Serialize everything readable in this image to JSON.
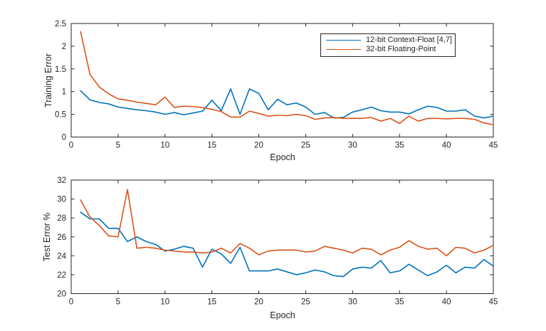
{
  "figure": {
    "background": "#ffffff",
    "axis_color": "#262626",
    "text_color": "#262626"
  },
  "colors": {
    "series1": "#0072BD",
    "series2": "#D95319"
  },
  "legend": {
    "position": "top-plot-north",
    "entries": [
      {
        "label": "12-bit Context-Float [4,7]",
        "color": "#0072BD"
      },
      {
        "label": "32-bit Floating-Point",
        "color": "#D95319"
      }
    ]
  },
  "chart_data": [
    {
      "type": "line",
      "title": "",
      "xlabel": "Epoch",
      "ylabel": "Training Error",
      "xlim": [
        0,
        45
      ],
      "ylim": [
        0,
        2.5
      ],
      "xticks": [
        0,
        5,
        10,
        15,
        20,
        25,
        30,
        35,
        40,
        45
      ],
      "yticks": [
        0,
        0.5,
        1,
        1.5,
        2,
        2.5
      ],
      "grid": false,
      "legend_position": "north",
      "x": [
        1,
        2,
        3,
        4,
        5,
        6,
        7,
        8,
        9,
        10,
        11,
        12,
        13,
        14,
        15,
        16,
        17,
        18,
        19,
        20,
        21,
        22,
        23,
        24,
        25,
        26,
        27,
        28,
        29,
        30,
        31,
        32,
        33,
        34,
        35,
        36,
        37,
        38,
        39,
        40,
        41,
        42,
        43,
        44,
        45
      ],
      "series": [
        {
          "name": "12-bit Context-Float [4,7]",
          "color": "#0072BD",
          "values": [
            1.02,
            0.82,
            0.76,
            0.73,
            0.66,
            0.63,
            0.6,
            0.58,
            0.55,
            0.5,
            0.54,
            0.49,
            0.53,
            0.57,
            0.81,
            0.58,
            1.06,
            0.5,
            1.06,
            0.96,
            0.6,
            0.83,
            0.71,
            0.75,
            0.66,
            0.5,
            0.54,
            0.42,
            0.43,
            0.55,
            0.6,
            0.66,
            0.58,
            0.55,
            0.55,
            0.51,
            0.6,
            0.68,
            0.65,
            0.57,
            0.57,
            0.6,
            0.46,
            0.42,
            0.46
          ]
        },
        {
          "name": "32-bit Floating-Point",
          "color": "#D95319",
          "values": [
            2.32,
            1.38,
            1.1,
            0.95,
            0.84,
            0.81,
            0.77,
            0.74,
            0.71,
            0.88,
            0.65,
            0.68,
            0.67,
            0.65,
            0.61,
            0.56,
            0.44,
            0.44,
            0.57,
            0.52,
            0.46,
            0.48,
            0.47,
            0.5,
            0.47,
            0.39,
            0.42,
            0.43,
            0.41,
            0.41,
            0.41,
            0.43,
            0.35,
            0.41,
            0.3,
            0.46,
            0.35,
            0.41,
            0.41,
            0.4,
            0.41,
            0.41,
            0.39,
            0.31,
            0.27
          ]
        }
      ]
    },
    {
      "type": "line",
      "title": "",
      "xlabel": "Epoch",
      "ylabel": "Test Error %",
      "xlim": [
        0,
        45
      ],
      "ylim": [
        20,
        32
      ],
      "xticks": [
        0,
        5,
        10,
        15,
        20,
        25,
        30,
        35,
        40,
        45
      ],
      "yticks": [
        20,
        22,
        24,
        26,
        28,
        30,
        32
      ],
      "grid": false,
      "x": [
        1,
        2,
        3,
        4,
        5,
        6,
        7,
        8,
        9,
        10,
        11,
        12,
        13,
        14,
        15,
        16,
        17,
        18,
        19,
        20,
        21,
        22,
        23,
        24,
        25,
        26,
        27,
        28,
        29,
        30,
        31,
        32,
        33,
        34,
        35,
        36,
        37,
        38,
        39,
        40,
        41,
        42,
        43,
        44,
        45
      ],
      "series": [
        {
          "name": "12-bit Context-Float [4,7]",
          "color": "#0072BD",
          "values": [
            28.6,
            27.9,
            27.9,
            26.9,
            26.9,
            25.5,
            26.0,
            25.5,
            25.2,
            24.5,
            24.7,
            25.0,
            24.8,
            22.8,
            24.7,
            24.2,
            23.2,
            24.9,
            22.4,
            22.4,
            22.4,
            22.6,
            22.3,
            22.0,
            22.2,
            22.5,
            22.3,
            21.9,
            21.8,
            22.6,
            22.8,
            22.7,
            23.5,
            22.2,
            22.4,
            23.1,
            22.5,
            21.9,
            22.3,
            23.0,
            22.2,
            22.8,
            22.7,
            23.6,
            22.9
          ]
        },
        {
          "name": "32-bit Floating-Point",
          "color": "#D95319",
          "values": [
            29.9,
            28.1,
            27.2,
            26.1,
            26.0,
            31.0,
            24.8,
            24.9,
            24.8,
            24.6,
            24.5,
            24.4,
            24.4,
            24.3,
            24.4,
            24.8,
            24.3,
            25.3,
            24.8,
            24.1,
            24.5,
            24.6,
            24.6,
            24.6,
            24.4,
            24.5,
            25.0,
            24.8,
            24.6,
            24.3,
            24.8,
            24.7,
            24.1,
            24.6,
            24.9,
            25.6,
            25.0,
            24.7,
            24.8,
            24.0,
            24.9,
            24.8,
            24.3,
            24.6,
            25.1
          ]
        }
      ]
    }
  ]
}
